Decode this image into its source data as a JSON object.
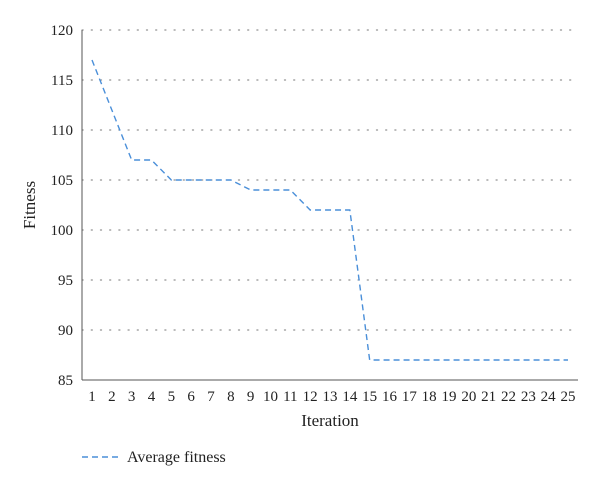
{
  "chart_data": {
    "type": "line",
    "xlabel": "Iteration",
    "ylabel": "Fitness",
    "ylim": [
      85,
      120
    ],
    "y_ticks": [
      85,
      90,
      95,
      100,
      105,
      110,
      115,
      120
    ],
    "grid": "horizontal-dotted",
    "legend_position": "bottom-left",
    "categories": [
      "1",
      "2",
      "3",
      "4",
      "5",
      "6",
      "7",
      "8",
      "9",
      "10",
      "11",
      "12",
      "13",
      "14",
      "15",
      "16",
      "17",
      "18",
      "19",
      "20",
      "21",
      "22",
      "23",
      "24",
      "25"
    ],
    "series": [
      {
        "name": "Average fitness",
        "color": "#4a8fd9",
        "line_style": "dashed",
        "values": [
          117,
          112,
          107,
          107,
          105,
          105,
          105,
          105,
          104,
          104,
          104,
          102,
          102,
          102,
          87,
          87,
          87,
          87,
          87,
          87,
          87,
          87,
          87,
          87,
          87
        ]
      }
    ]
  }
}
